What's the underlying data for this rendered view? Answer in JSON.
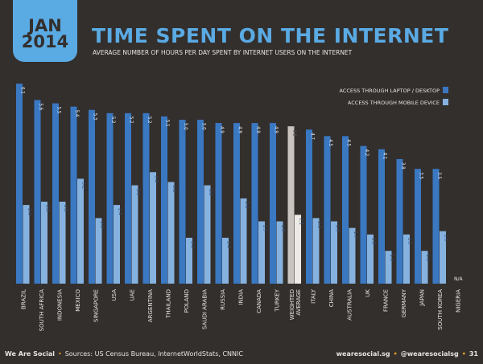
{
  "header": {
    "date_month": "JAN",
    "date_year": "2014",
    "title": "TIME SPENT ON THE INTERNET",
    "subtitle": "AVERAGE NUMBER OF HOURS PER DAY SPENT BY INTERNET USERS ON THE INTERNET"
  },
  "footer": {
    "brand": "We Are Social",
    "sources": "Sources: US Census Bureau, InternetWorldStats, CNNIC",
    "website": "wearesocial.sg",
    "handle": "@wearesocialsg",
    "page": "31"
  },
  "colors": {
    "laptop": "#3a78c2",
    "mobile": "#86b2e0",
    "average_laptop": "#c9c4bf",
    "average_mobile": "#ece9e6",
    "accent": "#5aaae3"
  },
  "chart_data": {
    "type": "bar",
    "title": "TIME SPENT ON THE INTERNET",
    "legend_position": "top-right",
    "grid": false,
    "ylim": [
      0,
      6.5
    ],
    "categories": [
      "BRAZIL",
      "SOUTH AFRICA",
      "INDONESIA",
      "MEXICO",
      "SINGAPORE",
      "USA",
      "UAE",
      "ARGENTINA",
      "THAILAND",
      "POLAND",
      "SAUDI ARABIA",
      "RUSSIA",
      "INDIA",
      "CANADA",
      "TURKEY",
      "WEIGHTED AVERAGE",
      "ITALY",
      "CHINA",
      "AUSTRALIA",
      "UK",
      "FRANCE",
      "GERMANY",
      "JAPAN",
      "SOUTH KOREA",
      "NIGERIA"
    ],
    "series": [
      {
        "name": "ACCESS THROUGH LAPTOP / DESKTOP",
        "values": [
          6.1,
          5.6,
          5.5,
          5.4,
          5.3,
          5.2,
          5.2,
          5.2,
          5.1,
          5.0,
          5.0,
          4.9,
          4.9,
          4.9,
          4.9,
          4.8,
          4.7,
          4.5,
          4.5,
          4.2,
          4.1,
          3.8,
          3.5,
          3.5,
          null
        ]
      },
      {
        "name": "ACCESS THROUGH MOBILE DEVICE",
        "values": [
          2.4,
          2.5,
          2.5,
          3.2,
          2.0,
          2.4,
          3.0,
          3.4,
          3.1,
          1.4,
          3.0,
          1.4,
          2.6,
          1.9,
          1.9,
          2.1,
          2.0,
          1.9,
          1.7,
          1.5,
          1.0,
          1.5,
          1.0,
          1.6,
          null
        ]
      }
    ],
    "missing_label": "N/A"
  }
}
